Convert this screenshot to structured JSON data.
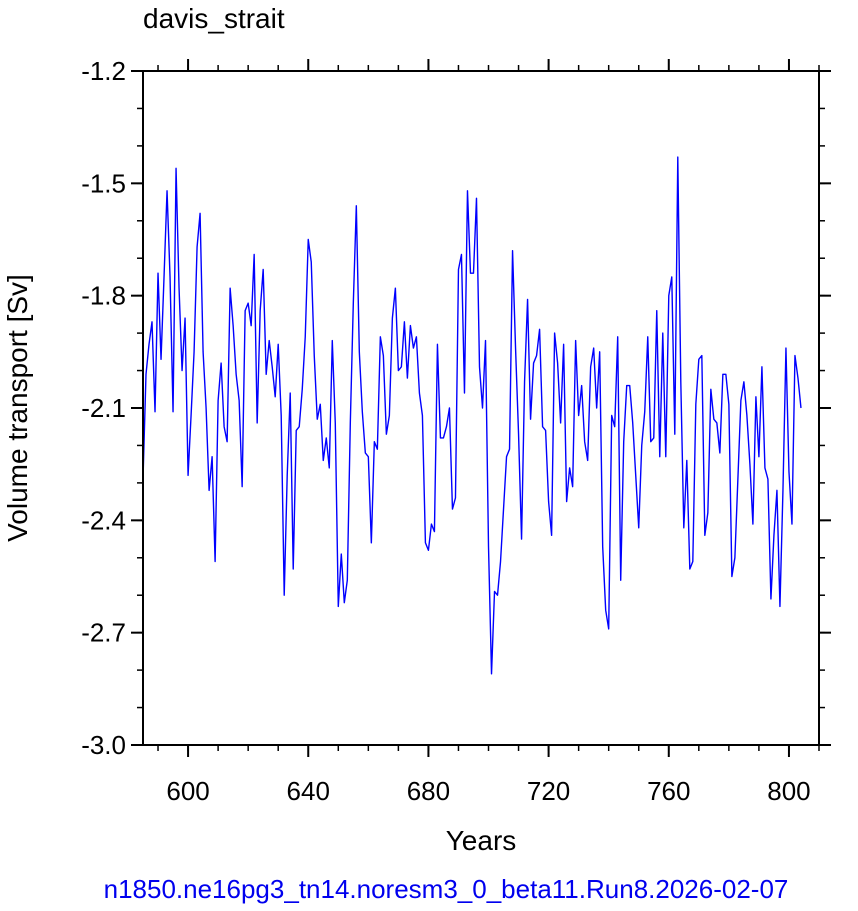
{
  "chart_data": {
    "type": "line",
    "title": "davis_strait",
    "xlabel": "Years",
    "ylabel": "Volume transport [Sv]",
    "footer": "n1850.ne16pg3_tn14.noresm3_0_beta11.Run8.2026-02-07",
    "xlim": [
      585,
      810
    ],
    "ylim": [
      -3.0,
      -1.2
    ],
    "x_ticks": [
      600,
      640,
      680,
      720,
      760,
      800
    ],
    "x_tick_labels": [
      "600",
      "640",
      "680",
      "720",
      "760",
      "800"
    ],
    "y_ticks": [
      -1.2,
      -1.5,
      -1.8,
      -2.1,
      -2.4,
      -2.7,
      -3.0
    ],
    "y_tick_labels": [
      "-1.2",
      "-1.5",
      "-1.8",
      "-2.1",
      "-2.4",
      "-2.7",
      "-3.0"
    ],
    "grid": false,
    "series": [
      {
        "color": "#0000ff",
        "x_start": 585,
        "x_step": 1,
        "values": [
          -2.29,
          -2.01,
          -1.93,
          -1.87,
          -2.11,
          -1.74,
          -1.97,
          -1.75,
          -1.52,
          -1.75,
          -2.11,
          -1.46,
          -1.78,
          -2.0,
          -1.86,
          -2.28,
          -2.12,
          -1.95,
          -1.67,
          -1.58,
          -1.95,
          -2.1,
          -2.32,
          -2.23,
          -2.51,
          -2.08,
          -1.98,
          -2.15,
          -2.19,
          -1.78,
          -1.88,
          -2.01,
          -2.08,
          -2.31,
          -1.84,
          -1.82,
          -1.88,
          -1.69,
          -2.14,
          -1.84,
          -1.73,
          -2.01,
          -1.92,
          -1.99,
          -2.07,
          -1.93,
          -2.12,
          -2.6,
          -2.28,
          -2.06,
          -2.53,
          -2.16,
          -2.15,
          -2.05,
          -1.91,
          -1.65,
          -1.71,
          -1.96,
          -2.13,
          -2.09,
          -2.24,
          -2.18,
          -2.26,
          -1.92,
          -2.14,
          -2.63,
          -2.49,
          -2.62,
          -2.56,
          -2.14,
          -1.82,
          -1.56,
          -1.95,
          -2.11,
          -2.22,
          -2.23,
          -2.46,
          -2.19,
          -2.21,
          -1.91,
          -1.96,
          -2.17,
          -2.12,
          -1.86,
          -1.78,
          -2.0,
          -1.99,
          -1.87,
          -2.02,
          -1.88,
          -1.94,
          -1.91,
          -2.06,
          -2.12,
          -2.46,
          -2.48,
          -2.41,
          -2.43,
          -1.93,
          -2.18,
          -2.18,
          -2.15,
          -2.1,
          -2.37,
          -2.34,
          -1.73,
          -1.69,
          -2.06,
          -1.52,
          -1.74,
          -1.74,
          -1.54,
          -1.99,
          -2.1,
          -1.92,
          -2.47,
          -2.81,
          -2.59,
          -2.6,
          -2.51,
          -2.37,
          -2.23,
          -2.21,
          -1.68,
          -1.94,
          -2.17,
          -2.45,
          -2.03,
          -1.81,
          -2.13,
          -1.98,
          -1.96,
          -1.89,
          -2.15,
          -2.16,
          -2.35,
          -2.44,
          -1.9,
          -1.98,
          -2.14,
          -1.93,
          -2.35,
          -2.26,
          -2.31,
          -1.92,
          -2.12,
          -2.04,
          -2.19,
          -2.24,
          -1.99,
          -1.94,
          -2.1,
          -1.95,
          -2.47,
          -2.64,
          -2.69,
          -2.12,
          -2.15,
          -1.91,
          -2.56,
          -2.19,
          -2.04,
          -2.04,
          -2.14,
          -2.28,
          -2.42,
          -2.2,
          -2.11,
          -1.91,
          -2.19,
          -2.18,
          -1.84,
          -2.23,
          -1.9,
          -2.23,
          -1.8,
          -1.75,
          -2.17,
          -1.43,
          -2.03,
          -2.42,
          -2.24,
          -2.53,
          -2.51,
          -2.09,
          -1.97,
          -1.96,
          -2.44,
          -2.38,
          -2.05,
          -2.13,
          -2.14,
          -2.22,
          -2.01,
          -2.01,
          -2.09,
          -2.55,
          -2.5,
          -2.29,
          -2.08,
          -2.03,
          -2.12,
          -2.25,
          -2.41,
          -2.07,
          -2.23,
          -1.99,
          -2.26,
          -2.29,
          -2.61,
          -2.44,
          -2.32,
          -2.63,
          -2.32,
          -1.94,
          -2.27,
          -2.41,
          -1.96,
          -2.02,
          -2.1
        ]
      }
    ]
  }
}
